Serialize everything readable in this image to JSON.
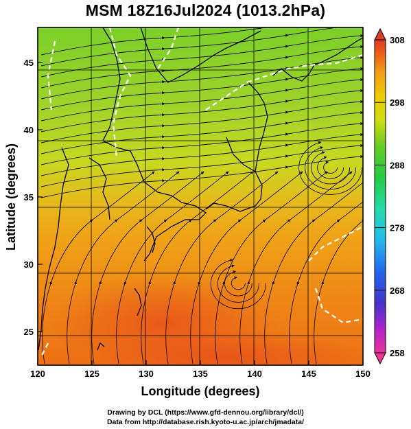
{
  "title": "MSM 18Z16Jul2024 (1013.2hPa)",
  "map": {
    "x_axis": {
      "label": "Longitude (degrees)",
      "ticks": [
        "120",
        "125",
        "130",
        "135",
        "140",
        "145",
        "150"
      ],
      "range": [
        120,
        150
      ]
    },
    "y_axis": {
      "label": "Latitude  (degrees)",
      "ticks": [
        "25",
        "30",
        "35",
        "40",
        "45"
      ],
      "range": [
        22.5,
        47.6
      ]
    },
    "field": "temperature with streamlines",
    "grid": true,
    "colorbar": {
      "ticks": [
        "308",
        "298",
        "288",
        "278",
        "268",
        "258"
      ],
      "range": [
        258,
        308
      ],
      "colors": [
        "#ee3399",
        "#aa22cc",
        "#4433cc",
        "#2266ee",
        "#22bbee",
        "#22ddaa",
        "#22cc44",
        "#66cc22",
        "#ccdd11",
        "#eecc00",
        "#f29a18",
        "#ee5a14",
        "#e03a28"
      ]
    }
  },
  "credits": {
    "line1": "Drawing by DCL (https://www.gfd-dennou.org/library/dcl/)",
    "line2": "Data from http://database.rish.kyoto-u.ac.jp/arch/jmadata/"
  }
}
